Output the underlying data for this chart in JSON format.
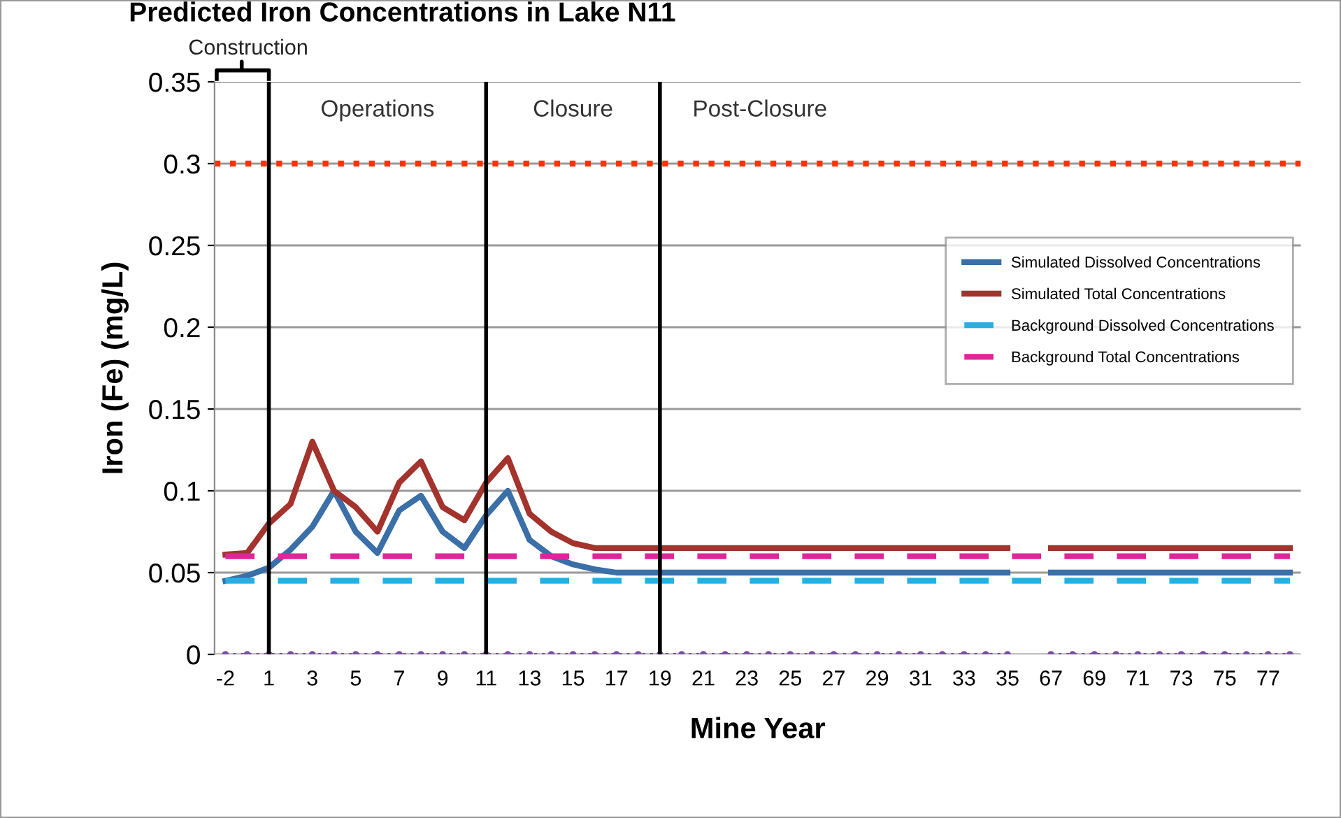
{
  "chart_data": {
    "type": "line",
    "title": "Predicted Iron Concentrations in Lake N11",
    "xlabel": "Mine Year",
    "ylabel": "Iron (Fe) (mg/L)",
    "categories": [
      "-2",
      null,
      "1",
      null,
      "3",
      null,
      "5",
      null,
      "7",
      null,
      "9",
      null,
      "11",
      null,
      "13",
      null,
      "15",
      null,
      "17",
      null,
      "19",
      null,
      "21",
      null,
      "23",
      null,
      "25",
      null,
      "27",
      null,
      "29",
      null,
      "31",
      null,
      "33",
      null,
      "35",
      null,
      "67",
      null,
      "69",
      null,
      "71",
      null,
      "73",
      null,
      "75",
      null,
      "77",
      null
    ],
    "series": [
      {
        "name": "Simulated Dissolved Concentrations",
        "color": "#3a6fa8",
        "line_style": "solid",
        "values": [
          0.045,
          0.048,
          0.053,
          0.064,
          0.078,
          0.1,
          0.075,
          0.062,
          0.088,
          0.097,
          0.075,
          0.065,
          0.085,
          0.1,
          0.07,
          0.06,
          0.055,
          0.052,
          0.05,
          0.05,
          0.05,
          0.05,
          0.05,
          0.05,
          0.05,
          0.05,
          0.05,
          0.05,
          0.05,
          0.05,
          0.05,
          0.05,
          0.05,
          0.05,
          0.05,
          0.05,
          0.05,
          null,
          0.05,
          0.05,
          0.05,
          0.05,
          0.05,
          0.05,
          0.05,
          0.05,
          0.05,
          0.05,
          0.05,
          0.05
        ]
      },
      {
        "name": "Simulated Total Concentrations",
        "color": "#a3332c",
        "line_style": "solid",
        "values": [
          0.061,
          0.062,
          0.08,
          0.092,
          0.13,
          0.1,
          0.09,
          0.075,
          0.105,
          0.118,
          0.09,
          0.082,
          0.105,
          0.12,
          0.086,
          0.075,
          0.068,
          0.065,
          0.065,
          0.065,
          0.065,
          0.065,
          0.065,
          0.065,
          0.065,
          0.065,
          0.065,
          0.065,
          0.065,
          0.065,
          0.065,
          0.065,
          0.065,
          0.065,
          0.065,
          0.065,
          0.065,
          null,
          0.065,
          0.065,
          0.065,
          0.065,
          0.065,
          0.065,
          0.065,
          0.065,
          0.065,
          0.065,
          0.065,
          0.065
        ]
      },
      {
        "name": "Background Dissolved Concentrations",
        "color": "#29aee4",
        "line_style": "dashed",
        "values": [
          0.045,
          0.045,
          0.045,
          0.045,
          0.045,
          0.045,
          0.045,
          0.045,
          0.045,
          0.045,
          0.045,
          0.045,
          0.045,
          0.045,
          0.045,
          0.045,
          0.045,
          0.045,
          0.045,
          0.045,
          0.045,
          0.045,
          0.045,
          0.045,
          0.045,
          0.045,
          0.045,
          0.045,
          0.045,
          0.045,
          0.045,
          0.045,
          0.045,
          0.045,
          0.045,
          0.045,
          0.045,
          0.045,
          0.045,
          0.045,
          0.045,
          0.045,
          0.045,
          0.045,
          0.045,
          0.045,
          0.045,
          0.045,
          0.045,
          0.045
        ]
      },
      {
        "name": "Background Total Concentrations",
        "color": "#e0259a",
        "line_style": "dashed",
        "values": [
          0.06,
          0.06,
          0.06,
          0.06,
          0.06,
          0.06,
          0.06,
          0.06,
          0.06,
          0.06,
          0.06,
          0.06,
          0.06,
          0.06,
          0.06,
          0.06,
          0.06,
          0.06,
          0.06,
          0.06,
          0.06,
          0.06,
          0.06,
          0.06,
          0.06,
          0.06,
          0.06,
          0.06,
          0.06,
          0.06,
          0.06,
          0.06,
          0.06,
          0.06,
          0.06,
          0.06,
          0.06,
          0.06,
          0.06,
          0.06,
          0.06,
          0.06,
          0.06,
          0.06,
          0.06,
          0.06,
          0.06,
          0.06,
          0.06,
          0.06
        ]
      },
      {
        "color": "#7a4fa0",
        "line_style": "dotted",
        "marker": "circle",
        "values": [
          0,
          0,
          0,
          0,
          0,
          0,
          0,
          0,
          0,
          0,
          0,
          0,
          0,
          0,
          0,
          0,
          0,
          0,
          0,
          0,
          0,
          0,
          0,
          0,
          0,
          0,
          0,
          0,
          0,
          0,
          0,
          0,
          0,
          0,
          0,
          0,
          0,
          null,
          0,
          0,
          0,
          0,
          0,
          0,
          0,
          0,
          0,
          0,
          0,
          0
        ]
      }
    ],
    "ylim": [
      0,
      0.35
    ],
    "yticks": [
      {
        "value": 0,
        "label": "0"
      },
      0.05,
      {
        "value": 0.1,
        "label": "0.1"
      },
      0.15,
      {
        "value": 0.2,
        "label": "0.2"
      },
      0.25,
      {
        "value": 0.3,
        "label": "0.3"
      },
      0.35
    ],
    "ref_lines": [
      {
        "axis": "y",
        "value": 0.3,
        "color": "#ff3300",
        "line_style": "dotted"
      },
      {
        "axis": "x",
        "value": "1",
        "label": "Operations",
        "color": "#000000",
        "line_style": "solid"
      },
      {
        "axis": "x",
        "value": "11",
        "label": "Closure",
        "color": "#000000",
        "line_style": "solid"
      },
      {
        "axis": "x",
        "value": "19",
        "label": "Post-Closure",
        "color": "#000000",
        "line_style": "solid"
      }
    ],
    "annotations": [
      "Construction"
    ],
    "grid": "y",
    "legend": "right"
  }
}
